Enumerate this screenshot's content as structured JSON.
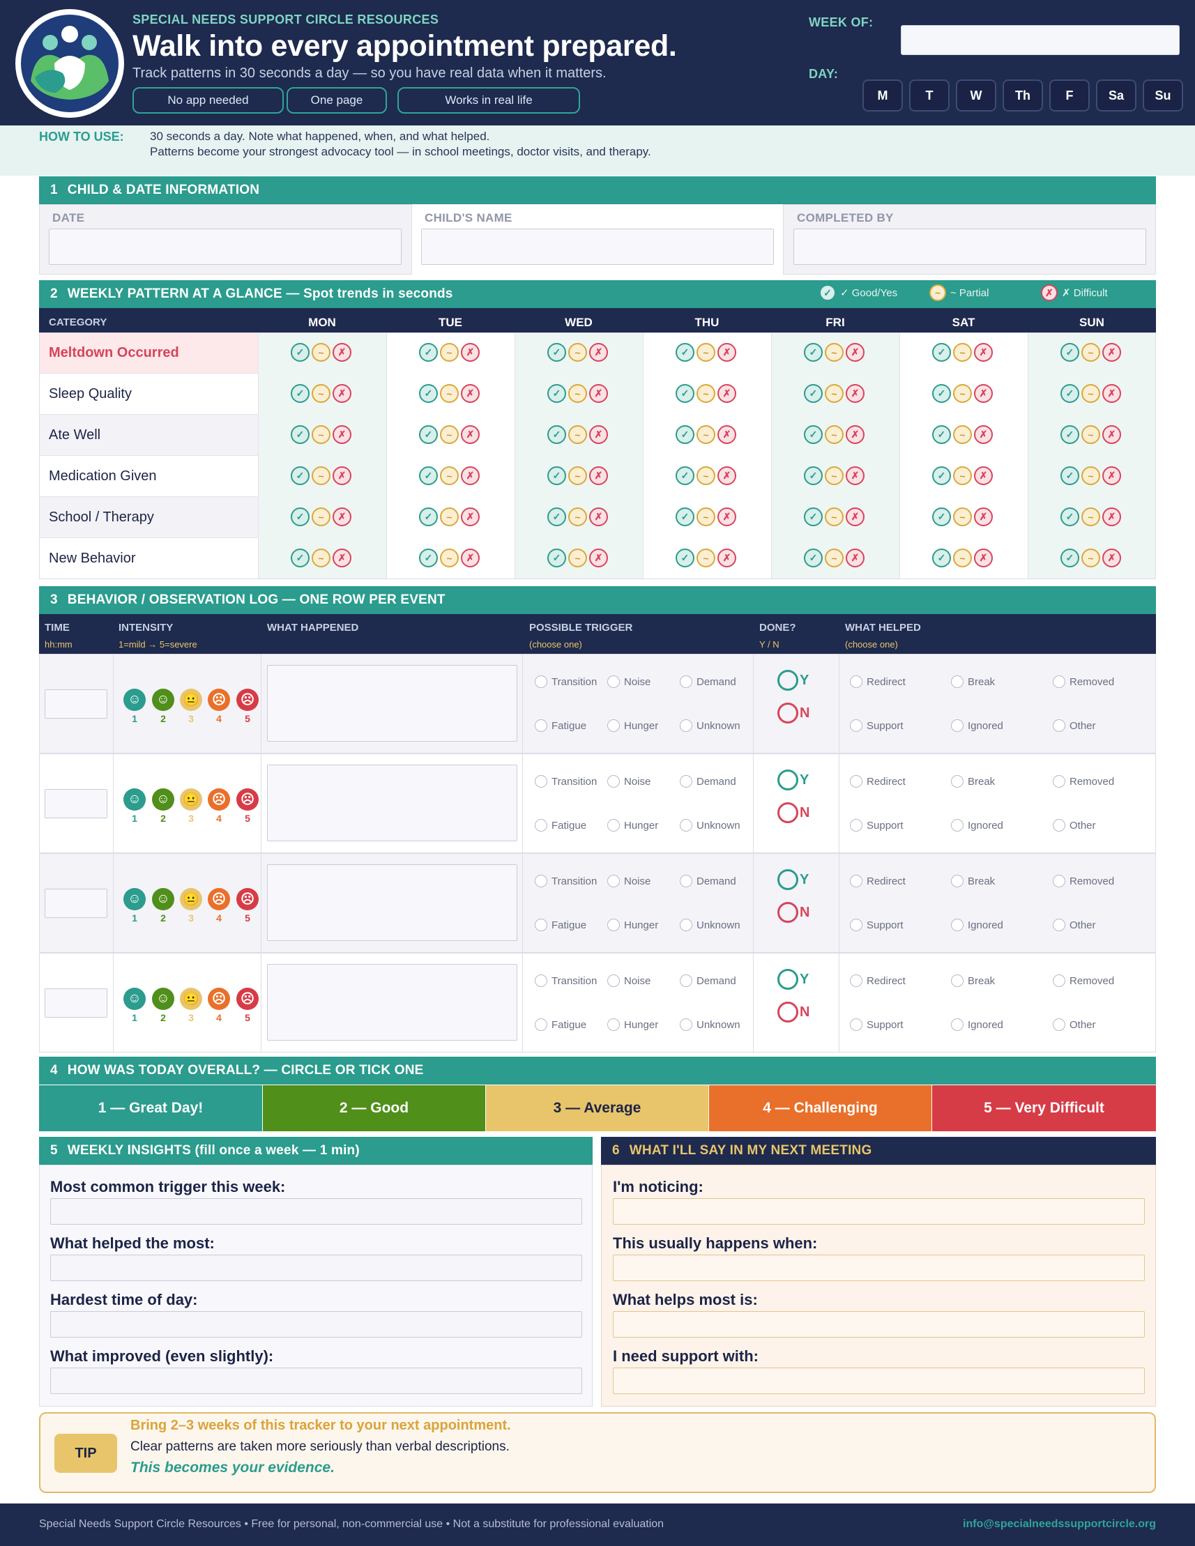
{
  "header": {
    "brand": "SPECIAL NEEDS SUPPORT CIRCLE RESOURCES",
    "title": "Walk into every appointment prepared.",
    "subtitle": "Track patterns in 30 seconds a day — so you have real data when it matters.",
    "pills": [
      "No app needed",
      "One page",
      "Works in real life"
    ],
    "week_label": "WEEK OF:",
    "week_value": "",
    "day_label": "DAY:",
    "days": [
      "M",
      "T",
      "W",
      "Th",
      "F",
      "Sa",
      "Su"
    ],
    "logo_icon": "family-hug-icon"
  },
  "how_to": {
    "label": "HOW TO USE:",
    "line1": "30 seconds a day. Note what happened, when, and what helped.",
    "line2": "Patterns become your strongest advocacy tool — in school meetings, doctor visits, and therapy."
  },
  "section1": {
    "number": "1",
    "title": "CHILD & DATE INFORMATION",
    "fields": [
      {
        "label": "DATE",
        "value": ""
      },
      {
        "label": "CHILD'S NAME",
        "value": ""
      },
      {
        "label": "COMPLETED BY",
        "value": ""
      }
    ]
  },
  "section2": {
    "number": "2",
    "title": "WEEKLY PATTERN AT A GLANCE — Spot trends in seconds",
    "legend": {
      "good": "✓ Good/Yes",
      "partial": "~ Partial",
      "difficult": "✗ Difficult"
    },
    "category_header": "CATEGORY",
    "days": [
      "MON",
      "TUE",
      "WED",
      "THU",
      "FRI",
      "SAT",
      "SUN"
    ],
    "categories": [
      "Meltdown Occurred",
      "Sleep Quality",
      "Ate Well",
      "Medication Given",
      "School / Therapy",
      "New Behavior"
    ],
    "symbols": {
      "good": "✓",
      "partial": "~",
      "difficult": "✗"
    },
    "colors": {
      "good": "#2b9c8d",
      "partial": "#d9a93a",
      "difficult": "#d6455a"
    }
  },
  "section3": {
    "number": "3",
    "title": "BEHAVIOR / OBSERVATION LOG — ONE ROW PER EVENT",
    "columns": {
      "time": "TIME",
      "time_sub": "hh:mm",
      "intensity": "INTENSITY",
      "intensity_sub": "1=mild → 5=severe",
      "what_happened": "WHAT HAPPENED",
      "trigger": "POSSIBLE TRIGGER",
      "trigger_sub": "(choose one)",
      "done": "DONE?",
      "done_sub": "Y  /  N",
      "helped": "WHAT HELPED",
      "helped_sub": "(choose one)"
    },
    "intensity_faces": [
      "☺",
      "☺",
      "😐",
      "☹",
      "☹"
    ],
    "intensity_numbers": [
      "1",
      "2",
      "3",
      "4",
      "5"
    ],
    "intensity_colors": [
      "#2b9c8d",
      "#4f8f1a",
      "#e8c56b",
      "#e9702a",
      "#d63c46"
    ],
    "triggers": [
      "Transition",
      "Noise",
      "Demand",
      "Fatigue",
      "Hunger",
      "Unknown"
    ],
    "helped": [
      "Redirect",
      "Break",
      "Removed",
      "Support",
      "Ignored",
      "Other"
    ],
    "yes": "Y",
    "no": "N",
    "rows": 4
  },
  "section4": {
    "number": "4",
    "title": "HOW WAS TODAY OVERALL? — CIRCLE OR TICK ONE",
    "ratings": [
      {
        "label": "1 — Great Day!",
        "color": "#2b9c8d"
      },
      {
        "label": "2 — Good",
        "color": "#4f8f1a"
      },
      {
        "label": "3 — Average",
        "color": "#e8c56b"
      },
      {
        "label": "4 — Challenging",
        "color": "#e9702a"
      },
      {
        "label": "5 — Very Difficult",
        "color": "#d63c46"
      }
    ]
  },
  "section5": {
    "number": "5",
    "title": "WEEKLY INSIGHTS  (fill once a week — 1 min)",
    "questions": [
      "Most common trigger this week:",
      "What helped the most:",
      "Hardest time of day:",
      "What improved (even slightly):"
    ]
  },
  "section6": {
    "number": "6",
    "title": "WHAT I'LL SAY IN MY NEXT MEETING",
    "questions": [
      "I'm noticing:",
      "This usually happens when:",
      "What helps most is:",
      "I need support with:"
    ]
  },
  "tip": {
    "badge": "TIP",
    "headline": "Bring 2–3 weeks of this tracker to your next appointment.",
    "body": "Clear patterns are taken more seriously than verbal descriptions.",
    "emphasis": "This becomes your evidence."
  },
  "footer": {
    "left": "Special Needs Support Circle Resources  •  Free for personal, non-commercial use  •  Not a substitute for professional evaluation",
    "email": "info@specialneedssupportcircle.org"
  }
}
